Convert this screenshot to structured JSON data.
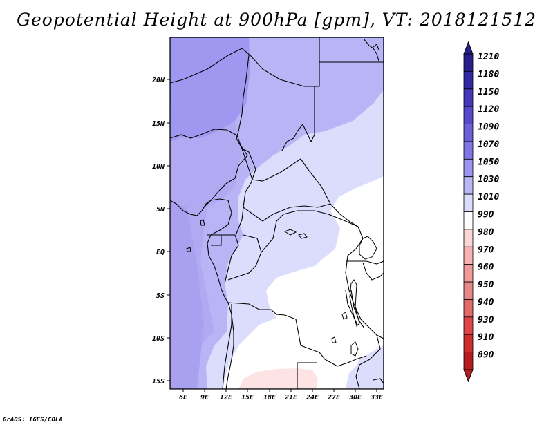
{
  "title": "Geopotential Height at 900hPa [gpm], VT: 2018121512",
  "credit": "GrADS: IGES/COLA",
  "map": {
    "lat_labels": [
      "20N",
      "15N",
      "10N",
      "5N",
      "EQ",
      "5S",
      "10S",
      "15S"
    ],
    "lon_labels": [
      "6E",
      "9E",
      "12E",
      "15E",
      "18E",
      "21E",
      "24E",
      "27E",
      "30E",
      "33E"
    ]
  },
  "colorbar": {
    "levels": [
      "1210",
      "1180",
      "1150",
      "1120",
      "1090",
      "1070",
      "1050",
      "1030",
      "1010",
      "990",
      "980",
      "970",
      "960",
      "950",
      "940",
      "930",
      "910",
      "890"
    ],
    "colors": [
      "#2a1e8c",
      "#3328a6",
      "#4536bd",
      "#5848cc",
      "#6c5fd8",
      "#8376e4",
      "#9d94ee",
      "#bbb6f4",
      "#dcdcfc",
      "#ffffff",
      "#fbd6d6",
      "#f7b2b2",
      "#f39a9a",
      "#e58888",
      "#e46a6a",
      "#de4747",
      "#cc2d2d",
      "#b41e1e"
    ]
  }
}
